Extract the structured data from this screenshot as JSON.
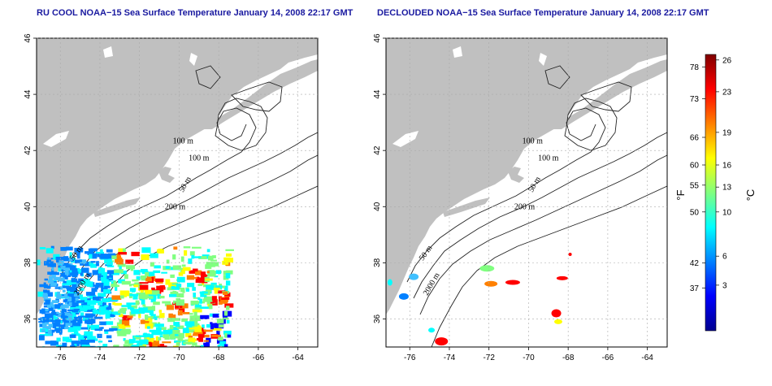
{
  "left_panel": {
    "title": "RU COOL NOAA−15 Sea Surface Temperature January 14, 2008 22:17 GMT"
  },
  "right_panel": {
    "title": "DECLOUDED NOAA−15 Sea Surface Temperature January 14, 2008 22:17 GMT"
  },
  "map": {
    "lon_range": [
      -77.2,
      -63.0
    ],
    "lat_range": [
      35.0,
      46.0
    ],
    "lon_ticks": [
      {
        "value": -76,
        "label": "-76"
      },
      {
        "value": -74,
        "label": "-74"
      },
      {
        "value": -72,
        "label": "-72"
      },
      {
        "value": -70,
        "label": "-70"
      },
      {
        "value": -68,
        "label": "-68"
      },
      {
        "value": -66,
        "label": "-66"
      },
      {
        "value": -64,
        "label": "-64"
      }
    ],
    "lat_ticks": [
      {
        "value": 36,
        "label": "36"
      },
      {
        "value": 38,
        "label": "38"
      },
      {
        "value": 40,
        "label": "40"
      },
      {
        "value": 42,
        "label": "42"
      },
      {
        "value": 44,
        "label": "44"
      },
      {
        "value": 46,
        "label": "46"
      }
    ],
    "land_color": "#c0c0c0",
    "grid": true,
    "contour_labels": [
      "100 m",
      "100 m",
      "50 m",
      "200 m",
      "50 m",
      "2000 m"
    ]
  },
  "colorbar": {
    "fahrenheit_label": "°F",
    "celsius_label": "°C",
    "fahrenheit_ticks": [
      {
        "label": "78",
        "frac": 0.955
      },
      {
        "label": "73",
        "frac": 0.84
      },
      {
        "label": "66",
        "frac": 0.7
      },
      {
        "label": "60",
        "frac": 0.6
      },
      {
        "label": "55",
        "frac": 0.527
      },
      {
        "label": "50",
        "frac": 0.43
      },
      {
        "label": "42",
        "frac": 0.245
      },
      {
        "label": "37",
        "frac": 0.155
      }
    ],
    "celsius_ticks": [
      {
        "label": "26",
        "frac": 0.98
      },
      {
        "label": "23",
        "frac": 0.865
      },
      {
        "label": "19",
        "frac": 0.718
      },
      {
        "label": "16",
        "frac": 0.6
      },
      {
        "label": "13",
        "frac": 0.52
      },
      {
        "label": "10",
        "frac": 0.43
      },
      {
        "label": "6",
        "frac": 0.27
      },
      {
        "label": "3",
        "frac": 0.165
      }
    ],
    "colors": [
      "#00008f",
      "#0000ff",
      "#0080ff",
      "#00ffff",
      "#80ff80",
      "#ffff00",
      "#ff8000",
      "#ff0000",
      "#800000"
    ]
  }
}
